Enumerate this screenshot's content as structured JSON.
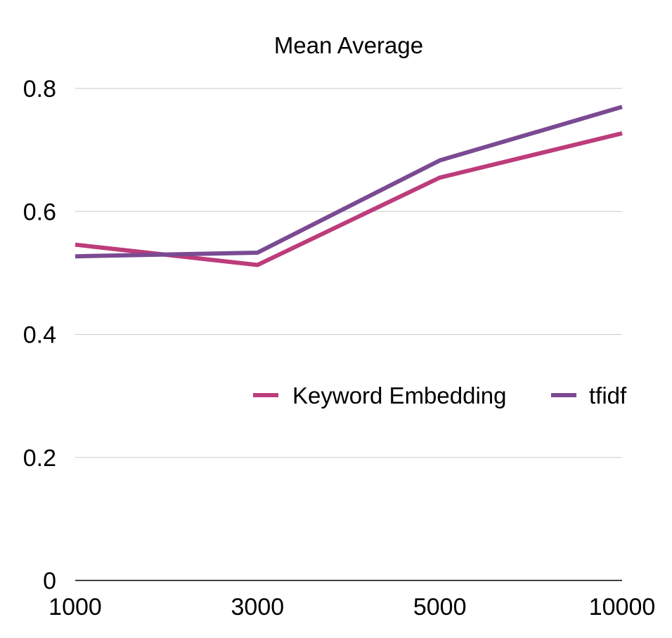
{
  "chart_data": {
    "type": "line",
    "title": "Mean Average",
    "xlabel": "",
    "ylabel": "",
    "categories": [
      "1000",
      "3000",
      "5000",
      "10000"
    ],
    "ylim": [
      0,
      0.8
    ],
    "yticks": [
      "0",
      "0.2",
      "0.4",
      "0.6",
      "0.8"
    ],
    "grid": true,
    "legend_position": "center-right",
    "series": [
      {
        "name": "Keyword Embedding",
        "color": "#bd3c7b",
        "values": [
          0.546,
          0.513,
          0.655,
          0.727
        ]
      },
      {
        "name": "tfidf",
        "color": "#7a4a92",
        "values": [
          0.527,
          0.533,
          0.683,
          0.77
        ]
      }
    ]
  }
}
